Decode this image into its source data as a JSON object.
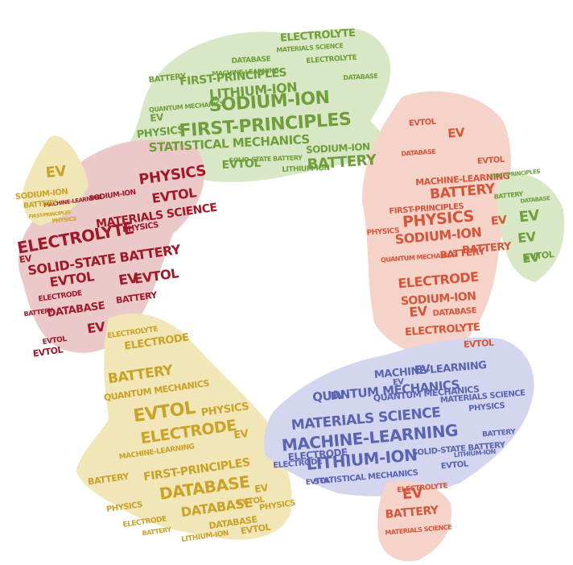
{
  "artwork": {
    "description_words": "word cloud shaped as four hands forming a circle",
    "hands": [
      {
        "id": "top",
        "color": "#6f9e3a",
        "shape_color": "#d8e8c6",
        "words": [
          "Electrolyte",
          "Materials science",
          "Database",
          "Electrolyte",
          "Machine-learning",
          "Battery",
          "First-principles",
          "Lithium-ion",
          "Sodium-ion",
          "EV",
          "First-principles",
          "Statistical mechanics",
          "Physics",
          "EVTOL",
          "Battery",
          "Sodium-ion",
          "Lithium-ion",
          "Solid-state battery",
          "Quantum mechanics",
          "Database"
        ]
      },
      {
        "id": "right",
        "color": "#d4553a",
        "shape_color": "#f5d3c9",
        "words": [
          "EV",
          "EVTOL",
          "EVTOL",
          "Database",
          "Machine-learning",
          "Battery",
          "First-principles",
          "Physics",
          "EV",
          "Sodium-ion",
          "Battery",
          "Electrode",
          "Sodium-ion",
          "EV",
          "Database",
          "Electrolyte",
          "EVTOL",
          "Physics",
          "Quantum mechanics",
          "Battery"
        ]
      },
      {
        "id": "right-sleeve",
        "color": "#6f9e3a",
        "shape_color": "#d8e8c6",
        "words": [
          "EV",
          "EV",
          "EV",
          "EVTOL",
          "Database",
          "First-principles",
          "Battery"
        ]
      },
      {
        "id": "left",
        "color": "#9e1a28",
        "shape_color": "#ecc9c9",
        "words": [
          "Physics",
          "EVTOL",
          "Materials science",
          "Electrolyte",
          "Solid-state battery",
          "EVTOL",
          "EV",
          "EVTOL",
          "Database",
          "EV",
          "Electrode",
          "Battery",
          "Sodium-ion",
          "Physics",
          "EVTOL",
          "Machine-learning",
          "Battery",
          "EV",
          "EVTOL"
        ]
      },
      {
        "id": "left-sleeve",
        "color": "#c9a227",
        "shape_color": "#f1e6b8",
        "words": [
          "EV",
          "Sodium-ion",
          "Battery",
          "First-principles",
          "Physics"
        ]
      },
      {
        "id": "bottom-left",
        "color": "#c9a227",
        "shape_color": "#f1e6b8",
        "words": [
          "Electrode",
          "Electrolyte",
          "Battery",
          "Quantum mechanics",
          "EVTOL",
          "Physics",
          "Electrode",
          "EV",
          "Machine-learning",
          "First-principles",
          "Database",
          "Database",
          "EV",
          "EVTOL",
          "Physics",
          "Battery",
          "Physics",
          "Lithium-ion",
          "Electrode",
          "Database",
          "Battery",
          "EVTOL"
        ]
      },
      {
        "id": "bottom-right",
        "color": "#5a64b0",
        "shape_color": "#d3d6ee",
        "words": [
          "EV",
          "Machine-learning",
          "EV",
          "Quantum mechanics",
          "Quantum mechanics",
          "Materials science",
          "Machine-learning",
          "Electrode",
          "Lithium-ion",
          "EVTOL",
          "Statistical mechanics",
          "Physics",
          "Materials science",
          "EV",
          "Battery",
          "Solid-state battery",
          "Lithium-ion",
          "Electrode",
          "EVTOL"
        ]
      },
      {
        "id": "bottom-right-sleeve",
        "color": "#d4553a",
        "shape_color": "#f5d3c9",
        "words": [
          "EV",
          "Battery",
          "Electrolyte",
          "Materials science"
        ]
      }
    ]
  }
}
